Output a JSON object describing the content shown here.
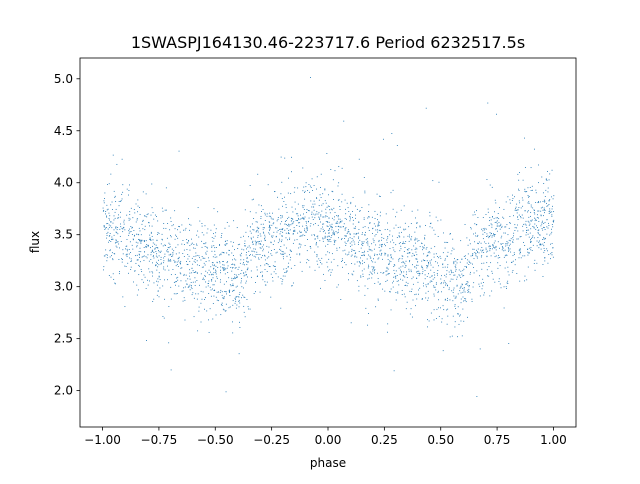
{
  "chart_data": {
    "type": "scatter",
    "title": "1SWASPJ164130.46-223717.6 Period 6232517.5s",
    "xlabel": "phase",
    "ylabel": "flux",
    "xlim": [
      -1.1,
      1.1
    ],
    "ylim": [
      1.65,
      5.2
    ],
    "xticks": [
      -1.0,
      -0.75,
      -0.5,
      -0.25,
      0.0,
      0.25,
      0.5,
      0.75,
      1.0
    ],
    "xtick_labels": [
      "−1.00",
      "−0.75",
      "−0.50",
      "−0.25",
      "0.00",
      "0.25",
      "0.50",
      "0.75",
      "1.00"
    ],
    "yticks": [
      2.0,
      2.5,
      3.0,
      3.5,
      4.0,
      4.5,
      5.0
    ],
    "ytick_labels": [
      "2.0",
      "2.5",
      "3.0",
      "3.5",
      "4.0",
      "4.5",
      "5.0"
    ],
    "grid": false,
    "point_color": "#1f77b4",
    "series": [
      {
        "description_of_trend": "phase-folded light curve, symmetric about 0, mirrored for phase in [-1,1]",
        "x": [
          -1.0,
          -0.95,
          -0.9,
          -0.85,
          -0.8,
          -0.75,
          -0.7,
          -0.65,
          -0.6,
          -0.55,
          -0.5,
          -0.45,
          -0.4,
          -0.35,
          -0.3,
          -0.25,
          -0.2,
          -0.15,
          -0.1,
          -0.05,
          0.0,
          0.05,
          0.1,
          0.15,
          0.2,
          0.25,
          0.3,
          0.35,
          0.4,
          0.45,
          0.5,
          0.55,
          0.6,
          0.65,
          0.7,
          0.75,
          0.8,
          0.85,
          0.9,
          0.95,
          1.0
        ],
        "y": [
          3.6,
          3.55,
          3.45,
          3.4,
          3.35,
          3.3,
          3.3,
          3.25,
          3.2,
          3.2,
          3.15,
          3.1,
          3.0,
          3.35,
          3.4,
          3.45,
          3.5,
          3.55,
          3.6,
          3.6,
          3.6,
          3.55,
          3.45,
          3.4,
          3.35,
          3.3,
          3.3,
          3.25,
          3.2,
          3.2,
          3.15,
          3.1,
          3.0,
          3.35,
          3.4,
          3.45,
          3.5,
          3.55,
          3.6,
          3.6,
          3.6
        ]
      }
    ]
  }
}
